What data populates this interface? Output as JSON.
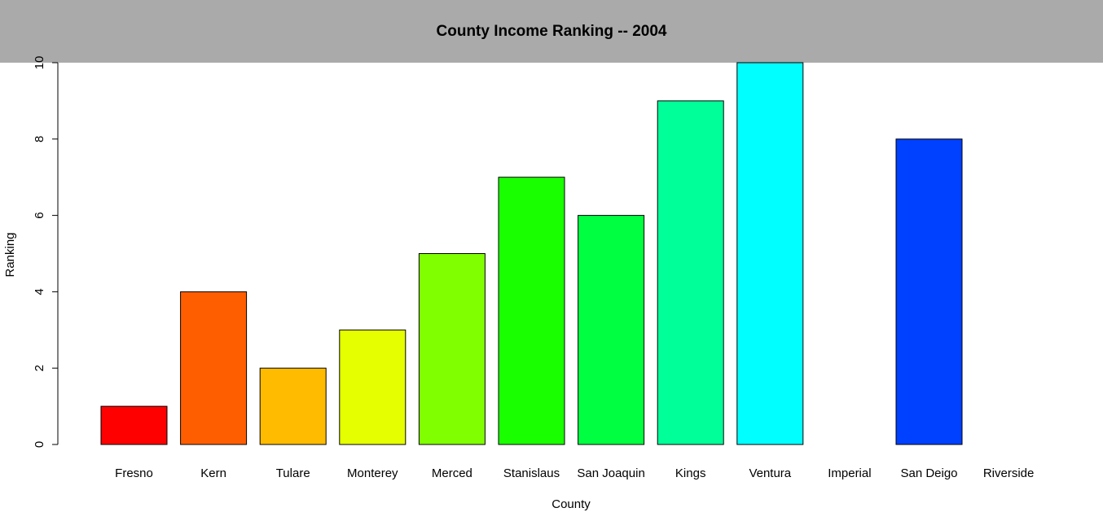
{
  "chart_data": {
    "type": "bar",
    "title": "County Income Ranking -- 2004",
    "xlabel": "County",
    "ylabel": "Ranking",
    "ylim": [
      0,
      10
    ],
    "y_ticks": [
      0,
      2,
      4,
      6,
      8,
      10
    ],
    "grid": false,
    "legend": "none",
    "categories": [
      "Fresno",
      "Kern",
      "Tulare",
      "Monterey",
      "Merced",
      "Stanislaus",
      "San Joaquin",
      "Kings",
      "Ventura",
      "Imperial",
      "San Deigo",
      "Riverside"
    ],
    "values": [
      1,
      4,
      2,
      3,
      5,
      7,
      6,
      9,
      10,
      0,
      8,
      0
    ],
    "colors": [
      "#FF0000",
      "#FF5E00",
      "#FFBB00",
      "#E5FF00",
      "#80FF00",
      "#1AFF00",
      "#00FF40",
      "#00FF99",
      "#00FFFF",
      "#0099FF",
      "#0040FF",
      "#1A00FF"
    ]
  },
  "colors": {
    "title_band": "#AAAAAA",
    "bar_outline": "#000000"
  }
}
